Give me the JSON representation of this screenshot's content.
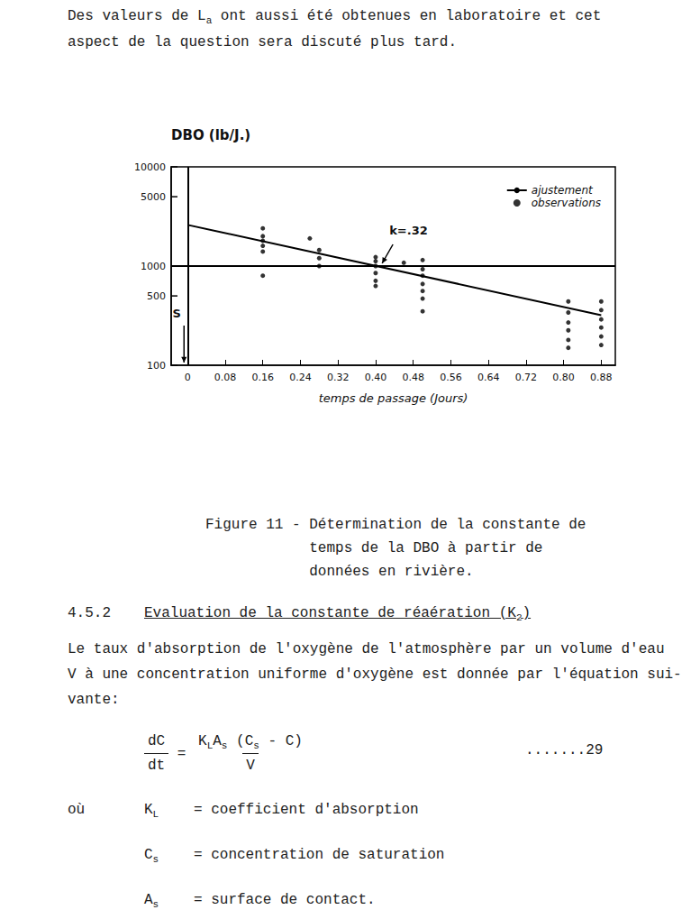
{
  "paragraph": {
    "lines": [
      [
        {
          "t": "Des valeurs de L"
        },
        {
          "sub": "a"
        },
        {
          "t": " ont aussi été obtenues en laboratoire et cet"
        }
      ],
      [
        {
          "t": "aspect de la question sera discuté plus tard."
        }
      ]
    ]
  },
  "chart_data": {
    "type": "scatter",
    "x_label": "temps de passage (Jours)",
    "y_label": "DBO (lb/J.)",
    "xlim": [
      -0.035,
      0.91
    ],
    "xticks": [
      0,
      0.08,
      0.16,
      0.24,
      0.32,
      {
        "value": 0.4,
        "label": "0.40"
      },
      0.48,
      0.56,
      0.64,
      0.72,
      {
        "value": 0.8,
        "label": "0.80"
      },
      0.88
    ],
    "ylim": [
      100,
      10000
    ],
    "yticks": [
      100,
      500,
      1000,
      5000,
      10000
    ],
    "log": "y",
    "grid": false,
    "legend": "upper right",
    "series": [
      {
        "name": "ajustement",
        "type": "line",
        "color": "#000000",
        "line_style": "solid",
        "x": [
          0,
          0.88
        ],
        "values": [
          2600,
          320
        ]
      },
      {
        "name": "observations",
        "type": "scatter",
        "color": "#000000",
        "marker": "circle",
        "x": [
          0.16,
          0.16,
          0.16,
          0.16,
          0.16,
          0.16,
          0.26,
          0.28,
          0.28,
          0.28,
          0.4,
          0.4,
          0.4,
          0.4,
          0.4,
          0.4,
          0.46,
          0.5,
          0.5,
          0.5,
          0.5,
          0.5,
          0.5,
          0.5,
          0.81,
          0.81,
          0.81,
          0.81,
          0.81,
          0.81,
          0.88,
          0.88,
          0.88,
          0.88,
          0.88,
          0.88
        ],
        "values": [
          2400,
          2000,
          1800,
          1600,
          1400,
          800,
          1900,
          1450,
          1200,
          1000,
          1230,
          1120,
          1000,
          850,
          710,
          630,
          1080,
          1150,
          930,
          800,
          660,
          560,
          470,
          350,
          440,
          340,
          270,
          225,
          180,
          150,
          440,
          360,
          290,
          240,
          195,
          160
        ]
      }
    ],
    "reference_lines": [
      {
        "axis": "y",
        "value": 1000
      },
      {
        "axis": "x",
        "value": 0
      }
    ],
    "annotations": [
      {
        "text": "k=.32",
        "x": 0.41,
        "y": 1000
      },
      {
        "text": "S",
        "x": 0,
        "y": 100
      }
    ]
  },
  "figure_caption": {
    "label": "Figure 11 -",
    "lines": [
      "Détermination de la constante de",
      "temps de la DBO à partir de",
      "données en rivière."
    ]
  },
  "section": {
    "number": "4.5.2",
    "title": [
      {
        "t": "Evaluation de la constante de réaération (K"
      },
      {
        "sub": "2"
      },
      {
        "t": ")"
      }
    ]
  },
  "body": {
    "lines": [
      [
        {
          "t": "Le taux d'absorption de l'oxygène de l'atmosphère par un volume d'eau"
        }
      ],
      [
        {
          "t": "V à une concentration uniforme d'oxygène est donnée par l'équation sui-"
        }
      ],
      [
        {
          "t": "vante:"
        }
      ]
    ]
  },
  "equation": {
    "lhs": {
      "num": [
        {
          "t": "dC"
        }
      ],
      "den": [
        {
          "t": "dt"
        }
      ]
    },
    "sign": "=",
    "rhs": {
      "num": [
        {
          "t": "K"
        },
        {
          "sub": "L"
        },
        {
          "t": "A"
        },
        {
          "sub": "s"
        },
        {
          "t": " (C"
        },
        {
          "sub": "s"
        },
        {
          "t": " - C)"
        }
      ],
      "den": [
        {
          "t": "V"
        }
      ]
    },
    "number": ".......29"
  },
  "definitions": {
    "lead": "où",
    "items": [
      {
        "symbol": [
          {
            "t": "K"
          },
          {
            "sub": "L"
          }
        ],
        "text": "= coefficient d'absorption"
      },
      {
        "symbol": [
          {
            "t": "C"
          },
          {
            "sub": "s"
          }
        ],
        "text": "= concentration de saturation"
      },
      {
        "symbol": [
          {
            "t": "A"
          },
          {
            "sub": "s"
          }
        ],
        "text": "= surface de contact."
      }
    ]
  }
}
